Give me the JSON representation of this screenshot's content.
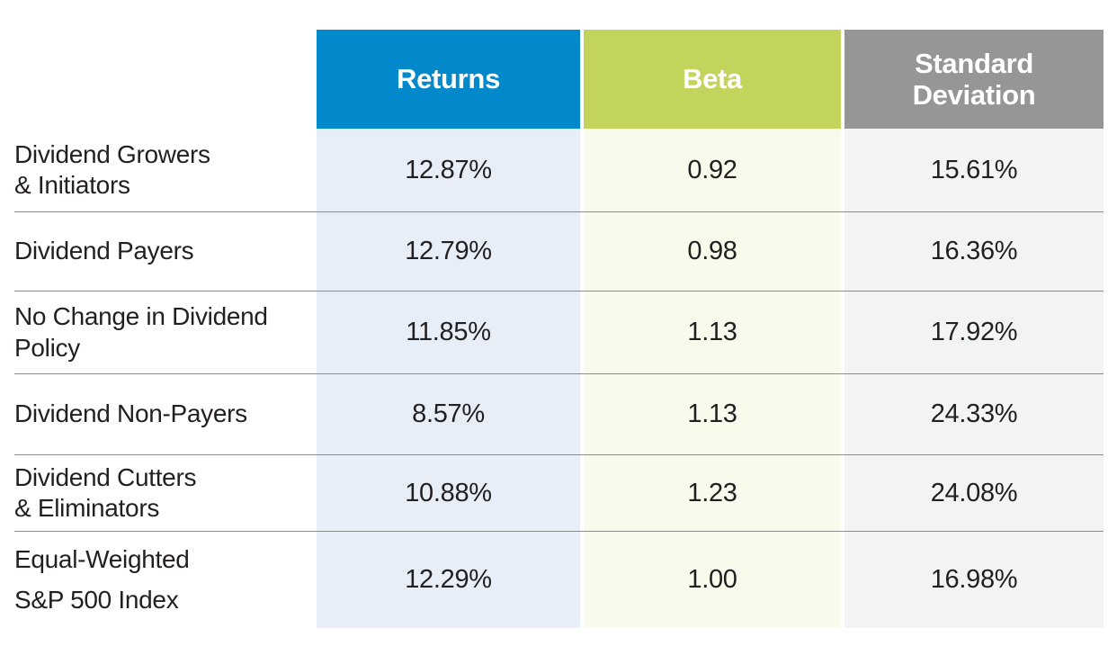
{
  "chart_data": {
    "type": "table",
    "columns": [
      "Returns",
      "Beta",
      "Standard Deviation"
    ],
    "row_labels": [
      "Dividend Growers & Initiators",
      "Dividend Payers",
      "No Change in Dividend Policy",
      "Dividend Non-Payers",
      "Dividend Cutters & Eliminators",
      "Equal-Weighted S&P 500 Index"
    ],
    "series": [
      {
        "name": "Returns",
        "values": [
          "12.87%",
          "12.79%",
          "11.85%",
          "8.57%",
          "10.88%",
          "12.29%"
        ]
      },
      {
        "name": "Beta",
        "values": [
          "0.92",
          "0.98",
          "1.13",
          "1.13",
          "1.23",
          "1.00"
        ]
      },
      {
        "name": "Standard Deviation",
        "values": [
          "15.61%",
          "16.36%",
          "17.92%",
          "24.33%",
          "24.08%",
          "16.98%"
        ]
      }
    ]
  },
  "table": {
    "headers": [
      {
        "label": "Returns"
      },
      {
        "label": "Beta"
      },
      {
        "label": "Standard\nDeviation"
      }
    ],
    "rows": [
      {
        "label": "Dividend Growers\n& Initiators",
        "returns": "12.87%",
        "beta": "0.92",
        "std_dev": "15.61%"
      },
      {
        "label": "Dividend Payers",
        "returns": "12.79%",
        "beta": "0.98",
        "std_dev": "16.36%"
      },
      {
        "label": "No Change in Dividend\nPolicy",
        "returns": "11.85%",
        "beta": "1.13",
        "std_dev": "17.92%"
      },
      {
        "label": "Dividend Non-Payers",
        "returns": "8.57%",
        "beta": "1.13",
        "std_dev": "24.33%"
      },
      {
        "label": "Dividend Cutters\n& Eliminators",
        "returns": "10.88%",
        "beta": "1.23",
        "std_dev": "24.08%"
      },
      {
        "label": "Equal-Weighted\nS&P 500 Index",
        "returns": "12.29%",
        "beta": "1.00",
        "std_dev": "16.98%"
      }
    ]
  },
  "colors": {
    "returns_header": "#0189CB",
    "beta_header": "#C2D45C",
    "std_dev_header": "#969696",
    "returns_body": "#E7EEF7",
    "beta_body": "#F8FAEC",
    "std_dev_body": "#F2F4F3",
    "divider": "#8C8C8C",
    "text": "#231F20",
    "header_text": "#FFFFFF"
  }
}
